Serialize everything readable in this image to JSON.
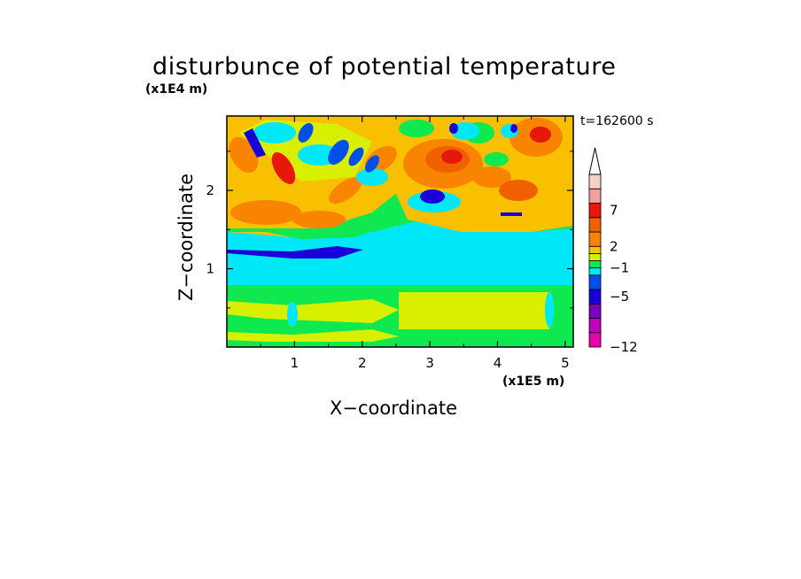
{
  "chart_data": {
    "type": "heatmap",
    "title": "disturbunce of potential temperature",
    "xlabel": "X−coordinate",
    "ylabel": "Z−coordinate",
    "x_scale_label": "(x1E5 m)",
    "z_scale_label": "(x1E4 m)",
    "annotation": "t=162600 s",
    "x_ticks": [
      "1",
      "2",
      "3",
      "4",
      "5"
    ],
    "y_ticks": [
      "1",
      "2"
    ],
    "xlim": [
      0,
      5.12
    ],
    "ylim": [
      0,
      2.95
    ],
    "colorbar": {
      "ticks": [
        "−12",
        "−5",
        "−1",
        "2",
        "7"
      ],
      "bands": [
        {
          "range": [
            -12,
            -10
          ],
          "color": "#e800a8"
        },
        {
          "range": [
            -10,
            -8
          ],
          "color": "#c000b8"
        },
        {
          "range": [
            -8,
            -6
          ],
          "color": "#7a00c0"
        },
        {
          "range": [
            -6,
            -4
          ],
          "color": "#1a00d8"
        },
        {
          "range": [
            -4,
            -2
          ],
          "color": "#0050e8"
        },
        {
          "range": [
            -2,
            -1
          ],
          "color": "#00e8f8"
        },
        {
          "range": [
            -1,
            0
          ],
          "color": "#10e850"
        },
        {
          "range": [
            0,
            1
          ],
          "color": "#d8f000"
        },
        {
          "range": [
            1,
            2
          ],
          "color": "#f8c000"
        },
        {
          "range": [
            2,
            4
          ],
          "color": "#f88400"
        },
        {
          "range": [
            4,
            6
          ],
          "color": "#f06000"
        },
        {
          "range": [
            6,
            8
          ],
          "color": "#e81808"
        },
        {
          "range": [
            8,
            10
          ],
          "color": "#f0a0a0"
        },
        {
          "range": [
            10,
            12
          ],
          "color": "#f8d0c8"
        }
      ],
      "extend_max": true
    }
  }
}
